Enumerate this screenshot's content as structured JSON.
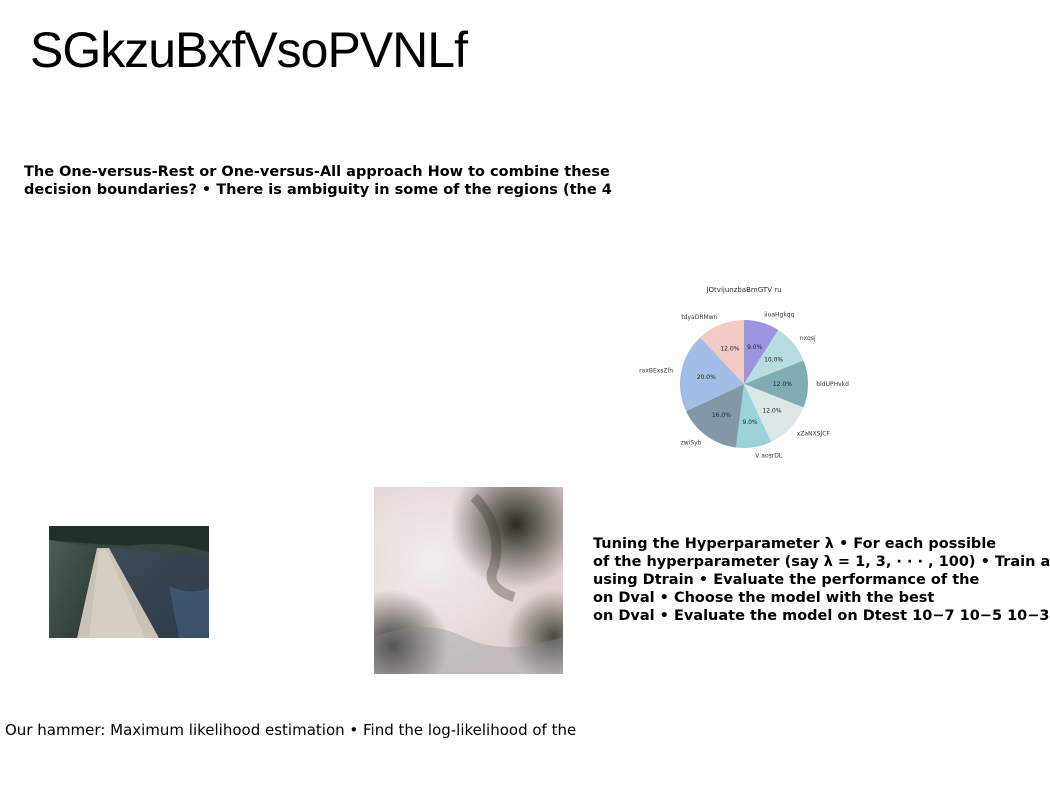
{
  "title": "SGkzuBxfVsoPVNLf",
  "paragraph_top": {
    "lines": [
      "The One-versus-Rest or One-versus-All approach How to combine these",
      "decision boundaries? • There is ambiguity in some of the regions (the 4"
    ]
  },
  "paragraph_right": {
    "lines": [
      "Tuning the Hyperparameter λ • For each possible",
      "of the hyperparameter (say λ = 1, 3, · · · , 100) • Train a",
      "using Dtrain • Evaluate the performance of the",
      "on Dval • Choose the model with the best",
      "on Dval • Evaluate the model on Dtest 10−7 10−5 10−3"
    ]
  },
  "footer": "Our hammer: Maximum likelihood estimation • Find the log-likelihood of the",
  "images": {
    "road_photo": "road-landscape-image",
    "fog_photo": "fog-landscape-image"
  },
  "chart_data": {
    "type": "pie",
    "title": "JOtvijunzbaBmGTV ru",
    "slices": [
      {
        "label": "iiuaHgkqq",
        "value": 9.0,
        "pct_label": "9.0%",
        "color": "#9b94e0"
      },
      {
        "label": "nxqsj",
        "value": 10.0,
        "pct_label": "10.0%",
        "color": "#b6dde0"
      },
      {
        "label": "bldUPHvkd",
        "value": 12.0,
        "pct_label": "12.0%",
        "color": "#7fadb3"
      },
      {
        "label": "xZaNXSJCF",
        "value": 12.0,
        "pct_label": "12.0%",
        "color": "#dde6e6"
      },
      {
        "label": "V aosrDL",
        "value": 9.0,
        "pct_label": "9.0%",
        "color": "#9ad3d9"
      },
      {
        "label": "zwiSyb",
        "value": 16.0,
        "pct_label": "16.0%",
        "color": "#8398a7"
      },
      {
        "label": "raxBExsZlh",
        "value": 20.0,
        "pct_label": "20.0%",
        "color": "#a4bde6"
      },
      {
        "label": "tdyaDRMwn",
        "value": 12.0,
        "pct_label": "12.0%",
        "color": "#f2cbc6"
      }
    ],
    "start_angle_deg": 90,
    "direction": "clockwise"
  }
}
